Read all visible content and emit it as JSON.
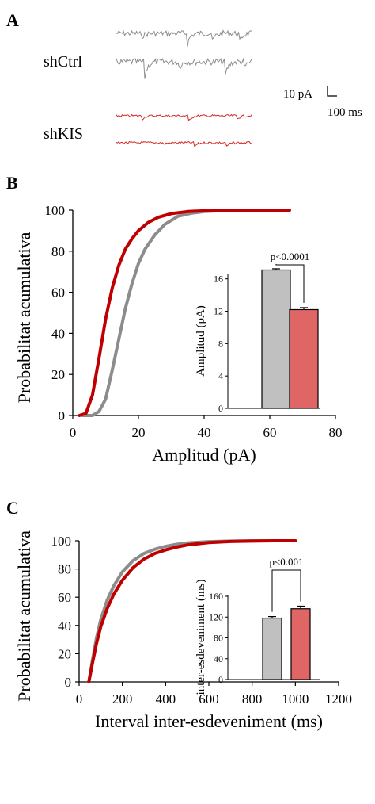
{
  "panel_a": {
    "label": "A",
    "traces": [
      {
        "name": "shCtrl",
        "color": "#8c8c8c"
      },
      {
        "name": "shKIS",
        "color": "#d42a2a"
      }
    ],
    "scale_bar": {
      "y_text": "10 pA",
      "x_text": "100 ms"
    }
  },
  "chart_data": [
    {
      "panel": "B",
      "type": "line",
      "xlabel": "Amplitud (pA)",
      "ylabel": "Probabilitat acumulativa",
      "xlim": [
        0,
        80
      ],
      "ylim": [
        0,
        100
      ],
      "x_ticks": [
        "0",
        "20",
        "40",
        "60",
        "80"
      ],
      "y_ticks": [
        "0",
        "20",
        "40",
        "60",
        "80",
        "100"
      ],
      "grid": false,
      "series": [
        {
          "color": "#8c8c8c",
          "x": [
            3,
            6,
            8,
            10,
            12,
            14,
            16,
            18,
            20,
            22,
            25,
            28,
            32,
            36,
            40,
            45,
            50,
            58,
            66
          ],
          "y": [
            0,
            0,
            2,
            8,
            22,
            37,
            52,
            64,
            74,
            81,
            88,
            93,
            97,
            98.5,
            99.3,
            99.7,
            99.9,
            100,
            100
          ]
        },
        {
          "color": "#c00000",
          "x": [
            2,
            4,
            6,
            8,
            10,
            12,
            14,
            16,
            18,
            20,
            23,
            26,
            30,
            35,
            40,
            45,
            50,
            58,
            66
          ],
          "y": [
            0,
            1,
            10,
            28,
            47,
            62,
            73,
            81,
            86,
            90,
            94,
            96.5,
            98.3,
            99.3,
            99.7,
            99.9,
            100,
            100,
            100
          ]
        }
      ],
      "inset": {
        "type": "bar",
        "ylabel": "Amplitud (pA)",
        "ylim": [
          0,
          17
        ],
        "y_ticks": [
          "0",
          "4",
          "8",
          "12",
          "16"
        ],
        "values": [
          17.1,
          12.2
        ],
        "errors": [
          0.15,
          0.25
        ],
        "colors": [
          "#c0c0c0",
          "#e06666"
        ],
        "annotation": "p<0.0001"
      }
    },
    {
      "panel": "C",
      "type": "line",
      "xlabel": "Interval inter-esdeveniment (ms)",
      "ylabel": "Probabilitat acumulativa",
      "xlim": [
        0,
        1200
      ],
      "ylim": [
        0,
        100
      ],
      "x_ticks": [
        "0",
        "200",
        "400",
        "600",
        "800",
        "1000",
        "1200"
      ],
      "y_ticks": [
        "0",
        "20",
        "40",
        "60",
        "80",
        "100"
      ],
      "grid": false,
      "series": [
        {
          "color": "#8c8c8c",
          "x": [
            45,
            60,
            80,
            100,
            130,
            160,
            200,
            250,
            300,
            350,
            400,
            450,
            500,
            600,
            700,
            800,
            900,
            1000
          ],
          "y": [
            0,
            14,
            31,
            44,
            58,
            68,
            78,
            86,
            91,
            94,
            96,
            97.5,
            98.5,
            99.4,
            99.8,
            100,
            100,
            100
          ]
        },
        {
          "color": "#c00000",
          "x": [
            45,
            60,
            80,
            100,
            130,
            160,
            200,
            250,
            300,
            350,
            400,
            450,
            500,
            600,
            700,
            800,
            900,
            1000
          ],
          "y": [
            0,
            12,
            27,
            39,
            52,
            62,
            72,
            81,
            87,
            91,
            93.5,
            95.5,
            97,
            98.7,
            99.5,
            99.8,
            100,
            100
          ]
        }
      ],
      "inset": {
        "type": "bar",
        "ylabel": "inter-esdeveniment (ms)",
        "ylim": [
          0,
          160
        ],
        "y_ticks": [
          "0",
          "40",
          "80",
          "120",
          "160"
        ],
        "values": [
          118,
          136
        ],
        "errors": [
          3,
          5
        ],
        "colors": [
          "#c0c0c0",
          "#e06666"
        ],
        "annotation": "p<0.001"
      }
    }
  ],
  "panel_labels": {
    "b": "B",
    "c": "C"
  }
}
